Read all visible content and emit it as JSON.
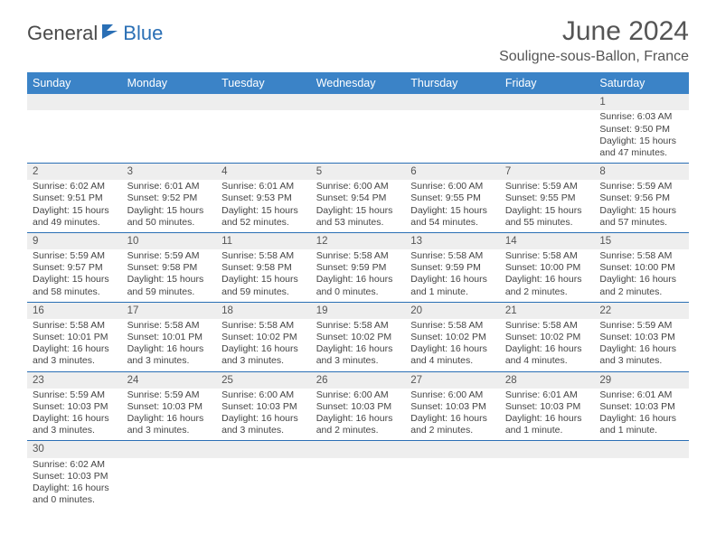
{
  "brand": {
    "part1": "General",
    "part2": "Blue"
  },
  "title": "June 2024",
  "location": "Souligne-sous-Ballon, France",
  "colors": {
    "header_bg": "#3b83c7",
    "border": "#2a6fb5",
    "zebra": "#eeeeee",
    "text": "#444444"
  },
  "weekdays": [
    "Sunday",
    "Monday",
    "Tuesday",
    "Wednesday",
    "Thursday",
    "Friday",
    "Saturday"
  ],
  "weeks": [
    [
      null,
      null,
      null,
      null,
      null,
      null,
      {
        "n": "1",
        "sr": "Sunrise: 6:03 AM",
        "ss": "Sunset: 9:50 PM",
        "dl": "Daylight: 15 hours and 47 minutes."
      }
    ],
    [
      {
        "n": "2",
        "sr": "Sunrise: 6:02 AM",
        "ss": "Sunset: 9:51 PM",
        "dl": "Daylight: 15 hours and 49 minutes."
      },
      {
        "n": "3",
        "sr": "Sunrise: 6:01 AM",
        "ss": "Sunset: 9:52 PM",
        "dl": "Daylight: 15 hours and 50 minutes."
      },
      {
        "n": "4",
        "sr": "Sunrise: 6:01 AM",
        "ss": "Sunset: 9:53 PM",
        "dl": "Daylight: 15 hours and 52 minutes."
      },
      {
        "n": "5",
        "sr": "Sunrise: 6:00 AM",
        "ss": "Sunset: 9:54 PM",
        "dl": "Daylight: 15 hours and 53 minutes."
      },
      {
        "n": "6",
        "sr": "Sunrise: 6:00 AM",
        "ss": "Sunset: 9:55 PM",
        "dl": "Daylight: 15 hours and 54 minutes."
      },
      {
        "n": "7",
        "sr": "Sunrise: 5:59 AM",
        "ss": "Sunset: 9:55 PM",
        "dl": "Daylight: 15 hours and 55 minutes."
      },
      {
        "n": "8",
        "sr": "Sunrise: 5:59 AM",
        "ss": "Sunset: 9:56 PM",
        "dl": "Daylight: 15 hours and 57 minutes."
      }
    ],
    [
      {
        "n": "9",
        "sr": "Sunrise: 5:59 AM",
        "ss": "Sunset: 9:57 PM",
        "dl": "Daylight: 15 hours and 58 minutes."
      },
      {
        "n": "10",
        "sr": "Sunrise: 5:59 AM",
        "ss": "Sunset: 9:58 PM",
        "dl": "Daylight: 15 hours and 59 minutes."
      },
      {
        "n": "11",
        "sr": "Sunrise: 5:58 AM",
        "ss": "Sunset: 9:58 PM",
        "dl": "Daylight: 15 hours and 59 minutes."
      },
      {
        "n": "12",
        "sr": "Sunrise: 5:58 AM",
        "ss": "Sunset: 9:59 PM",
        "dl": "Daylight: 16 hours and 0 minutes."
      },
      {
        "n": "13",
        "sr": "Sunrise: 5:58 AM",
        "ss": "Sunset: 9:59 PM",
        "dl": "Daylight: 16 hours and 1 minute."
      },
      {
        "n": "14",
        "sr": "Sunrise: 5:58 AM",
        "ss": "Sunset: 10:00 PM",
        "dl": "Daylight: 16 hours and 2 minutes."
      },
      {
        "n": "15",
        "sr": "Sunrise: 5:58 AM",
        "ss": "Sunset: 10:00 PM",
        "dl": "Daylight: 16 hours and 2 minutes."
      }
    ],
    [
      {
        "n": "16",
        "sr": "Sunrise: 5:58 AM",
        "ss": "Sunset: 10:01 PM",
        "dl": "Daylight: 16 hours and 3 minutes."
      },
      {
        "n": "17",
        "sr": "Sunrise: 5:58 AM",
        "ss": "Sunset: 10:01 PM",
        "dl": "Daylight: 16 hours and 3 minutes."
      },
      {
        "n": "18",
        "sr": "Sunrise: 5:58 AM",
        "ss": "Sunset: 10:02 PM",
        "dl": "Daylight: 16 hours and 3 minutes."
      },
      {
        "n": "19",
        "sr": "Sunrise: 5:58 AM",
        "ss": "Sunset: 10:02 PM",
        "dl": "Daylight: 16 hours and 3 minutes."
      },
      {
        "n": "20",
        "sr": "Sunrise: 5:58 AM",
        "ss": "Sunset: 10:02 PM",
        "dl": "Daylight: 16 hours and 4 minutes."
      },
      {
        "n": "21",
        "sr": "Sunrise: 5:58 AM",
        "ss": "Sunset: 10:02 PM",
        "dl": "Daylight: 16 hours and 4 minutes."
      },
      {
        "n": "22",
        "sr": "Sunrise: 5:59 AM",
        "ss": "Sunset: 10:03 PM",
        "dl": "Daylight: 16 hours and 3 minutes."
      }
    ],
    [
      {
        "n": "23",
        "sr": "Sunrise: 5:59 AM",
        "ss": "Sunset: 10:03 PM",
        "dl": "Daylight: 16 hours and 3 minutes."
      },
      {
        "n": "24",
        "sr": "Sunrise: 5:59 AM",
        "ss": "Sunset: 10:03 PM",
        "dl": "Daylight: 16 hours and 3 minutes."
      },
      {
        "n": "25",
        "sr": "Sunrise: 6:00 AM",
        "ss": "Sunset: 10:03 PM",
        "dl": "Daylight: 16 hours and 3 minutes."
      },
      {
        "n": "26",
        "sr": "Sunrise: 6:00 AM",
        "ss": "Sunset: 10:03 PM",
        "dl": "Daylight: 16 hours and 2 minutes."
      },
      {
        "n": "27",
        "sr": "Sunrise: 6:00 AM",
        "ss": "Sunset: 10:03 PM",
        "dl": "Daylight: 16 hours and 2 minutes."
      },
      {
        "n": "28",
        "sr": "Sunrise: 6:01 AM",
        "ss": "Sunset: 10:03 PM",
        "dl": "Daylight: 16 hours and 1 minute."
      },
      {
        "n": "29",
        "sr": "Sunrise: 6:01 AM",
        "ss": "Sunset: 10:03 PM",
        "dl": "Daylight: 16 hours and 1 minute."
      }
    ],
    [
      {
        "n": "30",
        "sr": "Sunrise: 6:02 AM",
        "ss": "Sunset: 10:03 PM",
        "dl": "Daylight: 16 hours and 0 minutes."
      },
      null,
      null,
      null,
      null,
      null,
      null
    ]
  ]
}
